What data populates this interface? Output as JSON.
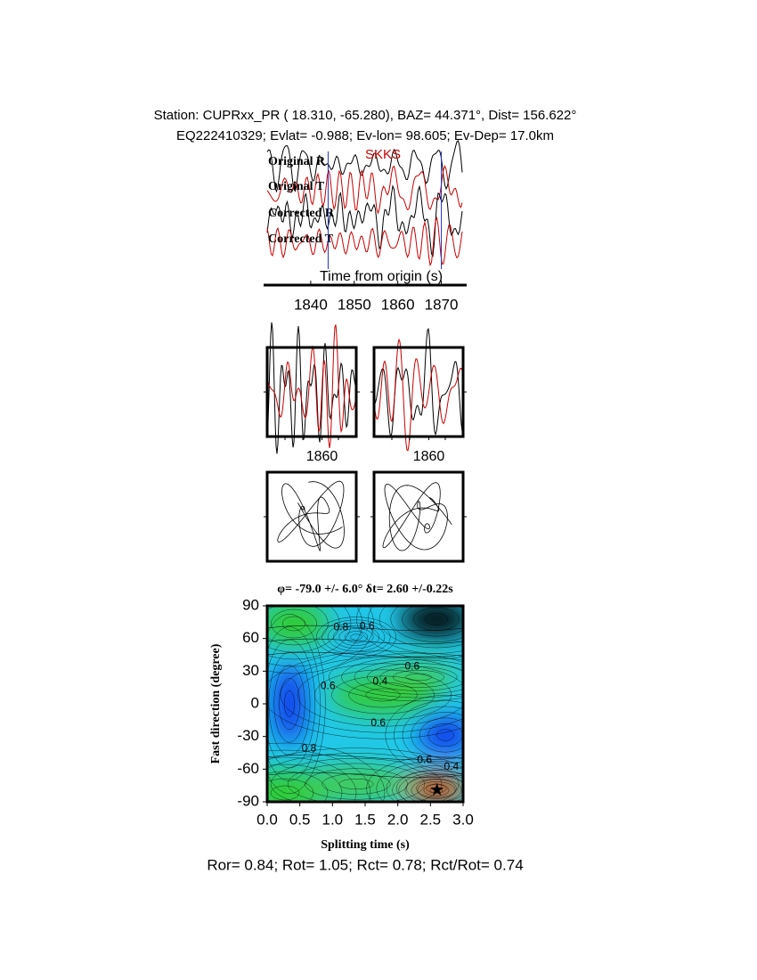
{
  "header": {
    "line1": "Station: CUPRxx_PR (  18.310,  -65.280), BAZ=   44.371°, Dist=  156.622°",
    "line2": "EQ222410329; Evlat=  -0.988; Ev-lon=  98.605; Ev-Dep= 17.0km"
  },
  "chart_data": [
    {
      "type": "waveform",
      "traces": [
        "Original R",
        "Original T",
        "Corrected R",
        "Corrected T"
      ],
      "trace_colors": [
        "#000000",
        "#cc0000",
        "#000000",
        "#cc0000"
      ],
      "phase": "SKKS",
      "xlabel": "Time from origin (s)",
      "xlim": [
        1830,
        1875
      ],
      "xticks": [
        1840,
        1850,
        1860,
        1870
      ],
      "window": [
        1844,
        1870
      ]
    },
    {
      "type": "window-waveform",
      "xlim": [
        1844,
        1870
      ],
      "xticks": [
        1860
      ]
    },
    {
      "type": "window-waveform",
      "xlim": [
        1844,
        1870
      ],
      "xticks": [
        1860
      ]
    },
    {
      "type": "particle-motion"
    },
    {
      "type": "particle-motion"
    },
    {
      "type": "contour",
      "title": "φ= -79.0 +/- 6.0° δt= 2.60 +/-0.22s",
      "xlabel": "Splitting time (s)",
      "ylabel": "Fast direction (degree)",
      "xlim": [
        0,
        3
      ],
      "ylim": [
        -90,
        90
      ],
      "xticks": [
        {
          "value": 0,
          "label": "0.0"
        },
        0.5,
        {
          "value": 1,
          "label": "1.0"
        },
        1.5,
        {
          "value": 2,
          "label": "2.0"
        },
        2.5,
        {
          "value": 3,
          "label": "3.0"
        }
      ],
      "yticks": [
        -90,
        -60,
        -30,
        0,
        30,
        60,
        90
      ],
      "best": {
        "x": 2.6,
        "y": -79
      },
      "contour_labels": [
        {
          "value": 0.6,
          "x": 1.53,
          "y": 71
        },
        {
          "value": 0.8,
          "x": 1.13,
          "y": 70
        },
        {
          "value": 0.6,
          "x": 2.22,
          "y": 34
        },
        {
          "value": 0.4,
          "x": 1.73,
          "y": 20
        },
        {
          "value": 0.6,
          "x": 0.93,
          "y": 16
        },
        {
          "value": 0.6,
          "x": 1.7,
          "y": -18
        },
        {
          "value": 0.8,
          "x": 0.64,
          "y": -41
        },
        {
          "value": 0.6,
          "x": 2.41,
          "y": -52
        },
        {
          "value": 0.4,
          "x": 2.82,
          "y": -58
        }
      ]
    }
  ],
  "footer": "Ror= 0.84; Rot= 1.05; Rct= 0.78; Rct/Rot= 0.74"
}
